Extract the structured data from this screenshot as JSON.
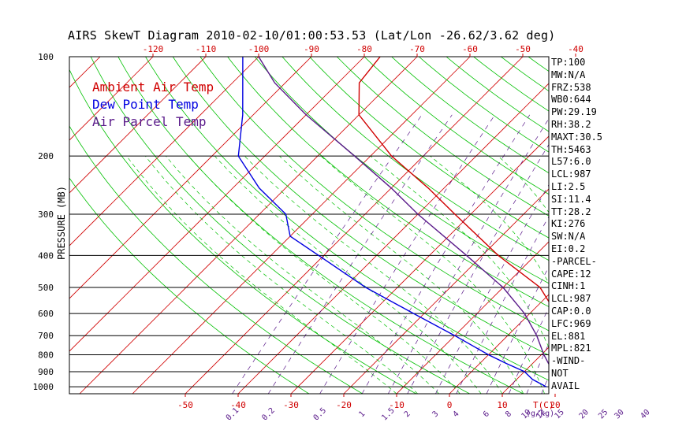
{
  "title": "AIRS SkewT Diagram 2010-02-10/01:00:53.53 (Lat/Lon -26.62/3.62 deg)",
  "colors": {
    "ambient": "#d00000",
    "dewpoint": "#0000e0",
    "parcel": "#5a1a8a",
    "isotherm": "#d00000",
    "dry_adiabat": "#00c000",
    "moist_adiabat": "#00c000",
    "mixing_ratio": "#5a1a8a",
    "isobar": "#000000"
  },
  "legend": [
    {
      "label": "Ambient Air Temp",
      "color": "#d00000"
    },
    {
      "label": "Dew Point Temp",
      "color": "#0000e0"
    },
    {
      "label": "Air Parcel Temp",
      "color": "#5a1a8a"
    }
  ],
  "indices": [
    "TP:100",
    "MW:N/A",
    "FRZ:538",
    "WB0:644",
    "PW:29.19",
    "RH:38.2",
    "MAXT:30.5",
    "TH:5463",
    "L57:6.0",
    "LCL:987",
    "LI:2.5",
    "SI:11.4",
    "TT:28.2",
    "KI:276",
    "SW:N/A",
    "EI:0.2",
    "-PARCEL-",
    "CAPE:12",
    "CINH:1",
    "LCL:987",
    "CAP:0.0",
    "LFC:969",
    "EL:881",
    "MPL:821",
    "-WIND-",
    "NOT",
    "AVAIL"
  ],
  "chart_data": {
    "type": "line",
    "title": "AIRS SkewT Diagram 2010-02-10/01:00:53.53 (Lat/Lon -26.62/3.62 deg)",
    "ylabel": "PRESSURE (MB)",
    "xlabel": "T(C)",
    "mixing_ratio_unit": "(g/kg)",
    "y_scale": "log",
    "ylim": [
      1050,
      100
    ],
    "pressure_ticks": [
      100,
      200,
      300,
      400,
      500,
      600,
      700,
      800,
      900,
      1000
    ],
    "top_temp_ticks": [
      -120,
      -110,
      -100,
      -90,
      -80,
      -70,
      -60,
      -50,
      -40
    ],
    "bottom_temp_ticks": [
      -50,
      -40,
      -30,
      -20,
      -10,
      0,
      10,
      20
    ],
    "mixing_ratio_ticks": [
      "0.1",
      "0.2",
      "0.5",
      "1",
      "1.5",
      "2",
      "3",
      "4",
      "6",
      "8",
      "10",
      "12",
      "15",
      "20",
      "25",
      "30",
      "40"
    ],
    "series": [
      {
        "name": "Ambient Air Temp",
        "pressure": [
          1000,
          950,
          900,
          850,
          800,
          750,
          700,
          600,
          500,
          400,
          300,
          250,
          200,
          150,
          120,
          100
        ],
        "temperature": [
          19.5,
          17.5,
          16.0,
          17.0,
          18.0,
          17.0,
          15.0,
          5.0,
          -3.0,
          -17.0,
          -33.0,
          -43.0,
          -56.0,
          -70.0,
          -76.0,
          -77.0
        ]
      },
      {
        "name": "Dew Point Temp",
        "pressure": [
          1000,
          950,
          900,
          850,
          800,
          700,
          600,
          500,
          400,
          350,
          300,
          250,
          200,
          150,
          100
        ],
        "temperature": [
          17.0,
          13.0,
          10.0,
          5.0,
          0.0,
          -10.0,
          -22.0,
          -36.0,
          -51.0,
          -60.0,
          -65.0,
          -75.0,
          -85.0,
          -92.0,
          -103.0
        ]
      },
      {
        "name": "Air Parcel Temp",
        "pressure": [
          1000,
          950,
          900,
          850,
          800,
          700,
          600,
          500,
          400,
          300,
          250,
          200,
          150,
          120,
          100
        ],
        "temperature": [
          19.5,
          18.5,
          15.5,
          13.0,
          10.5,
          5.5,
          -1.0,
          -10.0,
          -23.0,
          -40.0,
          -50.0,
          -63.0,
          -80.0,
          -92.0,
          -100.0
        ]
      }
    ]
  }
}
